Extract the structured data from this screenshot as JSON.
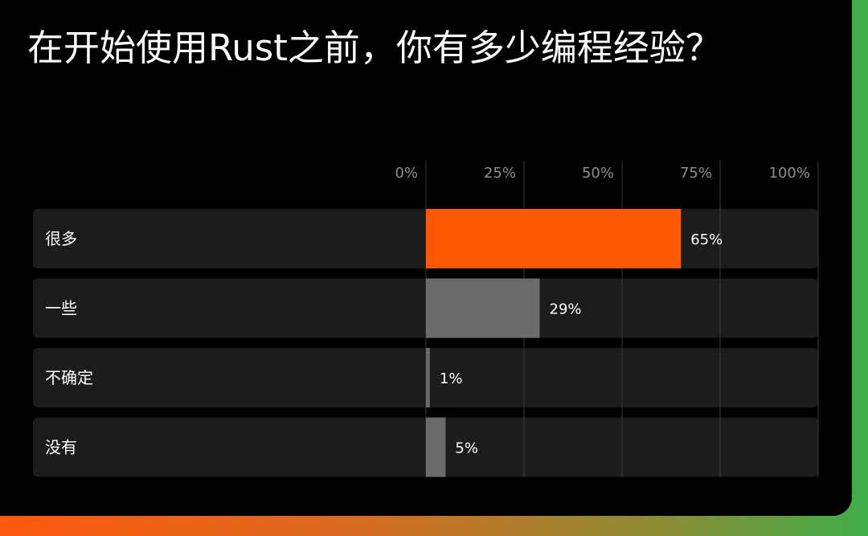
{
  "title": "在开始使用Rust之前，你有多少编程经验？",
  "chart_data": {
    "type": "bar",
    "orientation": "horizontal",
    "title": "在开始使用Rust之前，你有多少编程经验？",
    "categories": [
      "很多",
      "一些",
      "不确定",
      "没有"
    ],
    "values": [
      65,
      29,
      1,
      5
    ],
    "value_labels": [
      "65%",
      "29%",
      "1%",
      "5%"
    ],
    "x_ticks": [
      "0%",
      "25%",
      "50%",
      "75%",
      "100%"
    ],
    "xlim": [
      0,
      100
    ],
    "grid": true,
    "legend": "none",
    "highlight_index": 0,
    "colors": {
      "background": "#000000",
      "track": "#1c1c1c",
      "highlight": "#ff5a00",
      "bar": "#6b6b6b",
      "grid": "#3a3a3a",
      "tick_text": "#8f8f8f",
      "text": "#ffffff"
    }
  }
}
